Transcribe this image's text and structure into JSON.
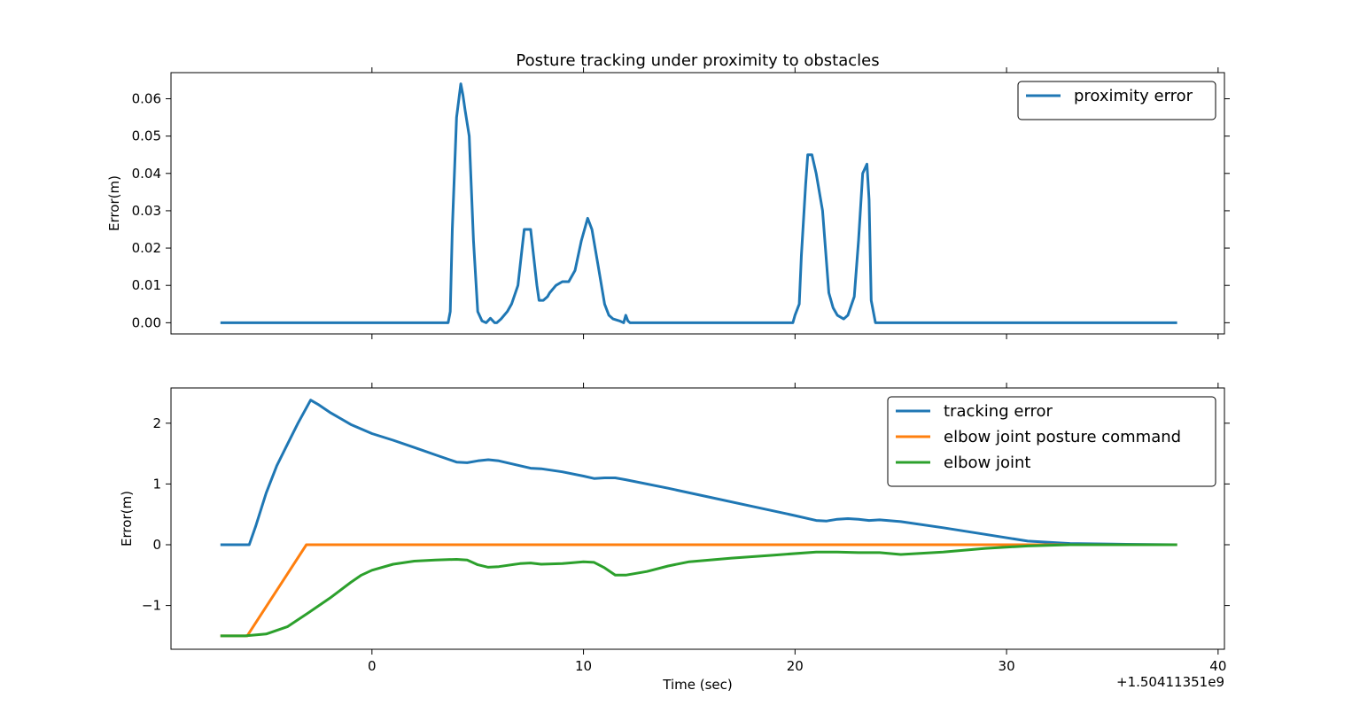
{
  "chart_data": [
    {
      "type": "line",
      "title": "Posture tracking under proximity to obstacles",
      "xlabel": "",
      "ylabel": "Error(m)",
      "xlim": [
        -9.5,
        40.3
      ],
      "ylim": [
        -0.003,
        0.067
      ],
      "xticks": [
        0,
        10,
        20,
        30,
        40
      ],
      "yticks": [
        0.0,
        0.01,
        0.02,
        0.03,
        0.04,
        0.05,
        0.06
      ],
      "ytick_labels": [
        "0.00",
        "0.01",
        "0.02",
        "0.03",
        "0.04",
        "0.05",
        "0.06"
      ],
      "show_xtick_labels": false,
      "legend": "upper-right",
      "series": [
        {
          "name": "proximity error",
          "color": "#1f77b4",
          "x": [
            -7.1,
            3.6,
            3.7,
            3.8,
            4.0,
            4.2,
            4.3,
            4.4,
            4.6,
            4.8,
            5.0,
            5.2,
            5.4,
            5.6,
            5.8,
            5.9,
            6.1,
            6.4,
            6.6,
            6.9,
            7.1,
            7.2,
            7.3,
            7.5,
            7.8,
            7.9,
            8.1,
            8.3,
            8.4,
            8.7,
            9.0,
            9.3,
            9.6,
            9.9,
            10.2,
            10.4,
            10.7,
            11.0,
            11.2,
            11.4,
            11.7,
            11.9,
            12.0,
            12.1,
            12.2,
            12.4,
            19.9,
            20.0,
            20.2,
            20.3,
            20.5,
            20.6,
            20.8,
            21.0,
            21.3,
            21.6,
            21.8,
            22.0,
            22.3,
            22.5,
            22.8,
            23.0,
            23.2,
            23.4,
            23.5,
            23.6,
            23.8,
            23.9,
            38.0
          ],
          "y": [
            0.0,
            0.0,
            0.003,
            0.025,
            0.055,
            0.064,
            0.061,
            0.057,
            0.05,
            0.022,
            0.003,
            0.0005,
            0.0,
            0.0012,
            0.0,
            0.0,
            0.001,
            0.003,
            0.005,
            0.01,
            0.02,
            0.025,
            0.025,
            0.025,
            0.01,
            0.006,
            0.006,
            0.007,
            0.008,
            0.01,
            0.011,
            0.011,
            0.014,
            0.022,
            0.028,
            0.025,
            0.015,
            0.005,
            0.002,
            0.001,
            0.0005,
            0.0,
            0.002,
            0.0005,
            0.0,
            0.0,
            0.0,
            0.002,
            0.005,
            0.018,
            0.037,
            0.045,
            0.045,
            0.04,
            0.03,
            0.008,
            0.004,
            0.002,
            0.001,
            0.002,
            0.007,
            0.022,
            0.04,
            0.0425,
            0.033,
            0.006,
            0.0,
            0.0,
            0.0
          ]
        }
      ]
    },
    {
      "type": "line",
      "title": "",
      "xlabel": "Time (sec)",
      "ylabel": "Error(m)",
      "x_offset_label": "+1.50411351e9",
      "xlim": [
        -9.5,
        40.3
      ],
      "ylim": [
        -1.72,
        2.58
      ],
      "xticks": [
        0,
        10,
        20,
        30,
        40
      ],
      "xtick_labels": [
        "0",
        "10",
        "20",
        "30",
        "40"
      ],
      "yticks": [
        -1,
        0,
        1,
        2
      ],
      "ytick_labels": [
        "−1",
        "0",
        "1",
        "2"
      ],
      "legend": "upper-right",
      "series": [
        {
          "name": "tracking error",
          "color": "#1f77b4",
          "x": [
            -7.1,
            -5.8,
            -5.5,
            -5.0,
            -4.5,
            -4.0,
            -3.5,
            -2.9,
            -2.5,
            -2.0,
            -1.0,
            0.0,
            1.0,
            2.0,
            3.0,
            4.0,
            4.5,
            5.0,
            5.5,
            6.0,
            7.0,
            7.5,
            8.0,
            9.0,
            10.0,
            10.5,
            11.0,
            11.5,
            12.0,
            14.0,
            16.0,
            18.0,
            20.0,
            21.0,
            21.5,
            22.0,
            22.5,
            23.0,
            23.5,
            24.0,
            25.0,
            27.0,
            29.0,
            31.0,
            33.0,
            35.0,
            38.0
          ],
          "y": [
            0.0,
            0.0,
            0.3,
            0.85,
            1.3,
            1.65,
            2.0,
            2.38,
            2.3,
            2.18,
            1.98,
            1.83,
            1.72,
            1.6,
            1.48,
            1.36,
            1.35,
            1.38,
            1.4,
            1.38,
            1.3,
            1.26,
            1.25,
            1.2,
            1.13,
            1.09,
            1.1,
            1.1,
            1.07,
            0.93,
            0.78,
            0.63,
            0.48,
            0.4,
            0.39,
            0.42,
            0.43,
            0.42,
            0.4,
            0.41,
            0.38,
            0.28,
            0.17,
            0.06,
            0.02,
            0.01,
            0.0
          ]
        },
        {
          "name": "elbow joint posture command",
          "color": "#ff7f0e",
          "x": [
            -7.1,
            -5.9,
            -3.1,
            38.0
          ],
          "y": [
            -1.5,
            -1.5,
            0.0,
            0.0
          ]
        },
        {
          "name": "elbow joint",
          "color": "#2ca02c",
          "x": [
            -7.1,
            -6.0,
            -5.0,
            -4.0,
            -3.0,
            -2.0,
            -1.0,
            -0.5,
            0.0,
            1.0,
            2.0,
            3.0,
            4.0,
            4.5,
            5.0,
            5.5,
            6.0,
            7.0,
            7.5,
            8.0,
            9.0,
            10.0,
            10.5,
            11.0,
            11.5,
            12.0,
            13.0,
            14.0,
            15.0,
            17.0,
            19.0,
            21.0,
            22.0,
            23.0,
            24.0,
            25.0,
            27.0,
            29.0,
            31.0,
            33.0,
            35.0,
            38.0
          ],
          "y": [
            -1.5,
            -1.5,
            -1.47,
            -1.35,
            -1.12,
            -0.88,
            -0.62,
            -0.5,
            -0.42,
            -0.32,
            -0.27,
            -0.25,
            -0.24,
            -0.25,
            -0.33,
            -0.37,
            -0.36,
            -0.31,
            -0.3,
            -0.32,
            -0.31,
            -0.28,
            -0.29,
            -0.38,
            -0.5,
            -0.5,
            -0.44,
            -0.35,
            -0.28,
            -0.22,
            -0.17,
            -0.12,
            -0.12,
            -0.13,
            -0.13,
            -0.16,
            -0.12,
            -0.06,
            -0.02,
            0.0,
            0.0,
            0.0
          ]
        }
      ]
    }
  ]
}
